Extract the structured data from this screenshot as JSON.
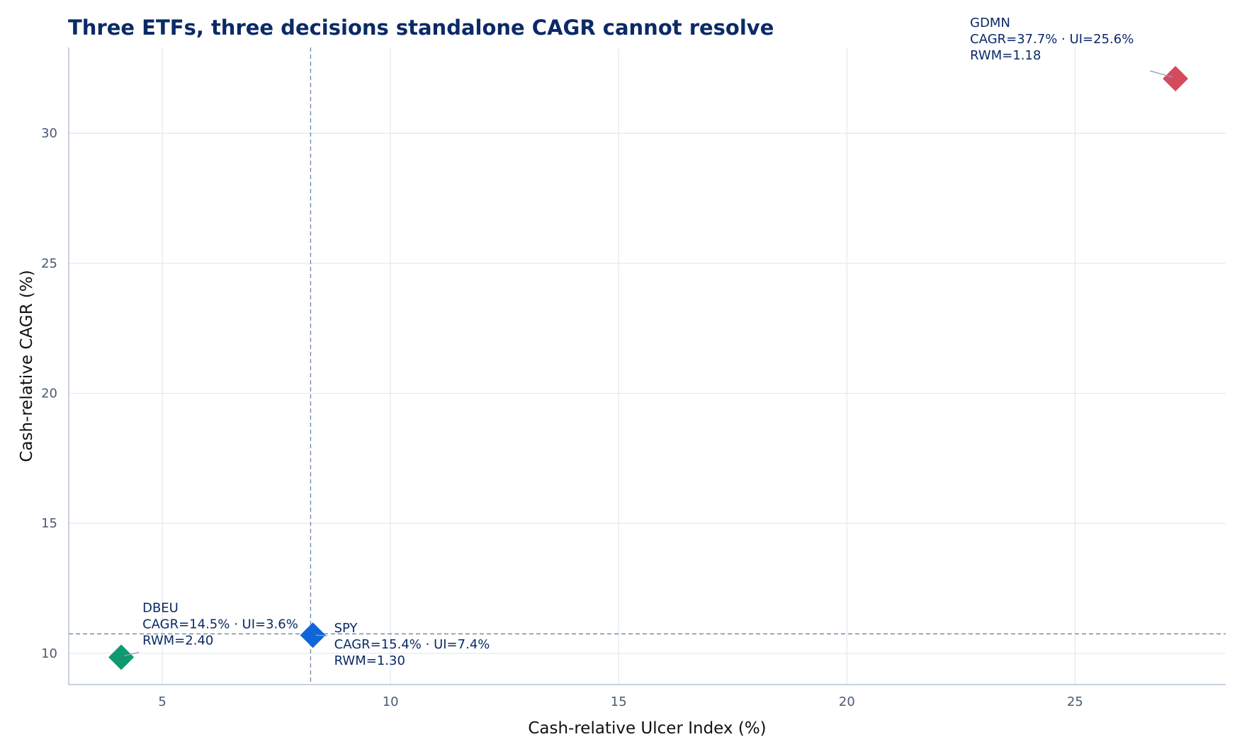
{
  "chart_data": {
    "type": "scatter",
    "title": "Three ETFs, three decisions standalone CAGR cannot resolve",
    "xlabel": "Cash-relative Ulcer Index (%)",
    "ylabel": "Cash-relative CAGR (%)",
    "xlim": [
      2.95,
      28.3
    ],
    "ylim": [
      8.8,
      33.3
    ],
    "xticks": [
      "5",
      "10",
      "15",
      "20",
      "25"
    ],
    "xtick_values": [
      5,
      10,
      15,
      20,
      25
    ],
    "yticks": [
      "10",
      "15",
      "20",
      "25",
      "30"
    ],
    "ytick_values": [
      10,
      15,
      20,
      25,
      30
    ],
    "grid": true,
    "marker": "diamond",
    "reference_lines": {
      "x": 8.25,
      "y": 10.75,
      "style": "dashed"
    },
    "points": [
      {
        "name": "DBEU",
        "x": 4.1,
        "y": 9.85,
        "color": "#0e9a6e",
        "label_lines": [
          "DBEU",
          "CAGR=14.5% · UI=3.6%",
          "RWM=2.40"
        ],
        "label_position": "upper-right"
      },
      {
        "name": "SPY",
        "x": 8.3,
        "y": 10.7,
        "color": "#0f66d9",
        "label_lines": [
          "SPY",
          "CAGR=15.4% · UI=7.4%",
          "RWM=1.30"
        ],
        "label_position": "right"
      },
      {
        "name": "GDMN",
        "x": 27.2,
        "y": 32.1,
        "color": "#d64a5e",
        "label_lines": [
          "GDMN",
          "CAGR=37.7% · UI=25.6%",
          "RWM=1.18"
        ],
        "label_position": "upper-left"
      }
    ]
  }
}
